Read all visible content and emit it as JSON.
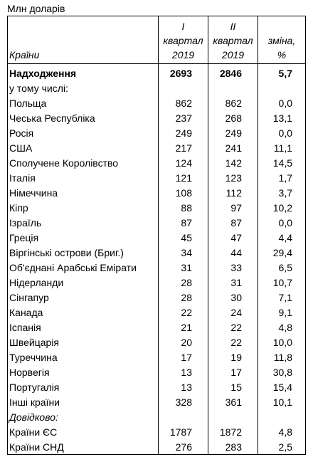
{
  "unit_label": "Млн доларів",
  "headers": {
    "country": "Країни",
    "q1": [
      "I",
      "квартал",
      "2019"
    ],
    "q2": [
      "II",
      "квартал",
      "2019"
    ],
    "change": [
      "зміна,",
      "%"
    ]
  },
  "total": {
    "label": "Надходження",
    "q1": "2693",
    "q2": "2846",
    "change": "5,7"
  },
  "including_label": "у тому числі:",
  "rows": [
    {
      "country": "Польща",
      "q1": "862",
      "q2": "862",
      "change": "0,0"
    },
    {
      "country": "Чеська Республіка",
      "q1": "237",
      "q2": "268",
      "change": "13,1"
    },
    {
      "country": "Росія",
      "q1": "249",
      "q2": "249",
      "change": "0,0"
    },
    {
      "country": "США",
      "q1": "217",
      "q2": "241",
      "change": "11,1"
    },
    {
      "country": "Сполучене Королівство",
      "q1": "124",
      "q2": "142",
      "change": "14,5"
    },
    {
      "country": "Італія",
      "q1": "121",
      "q2": "123",
      "change": "1,7"
    },
    {
      "country": "Німеччина",
      "q1": "108",
      "q2": "112",
      "change": "3,7"
    },
    {
      "country": "Кіпр",
      "q1": "88",
      "q2": "97",
      "change": "10,2"
    },
    {
      "country": "Ізраїль",
      "q1": "87",
      "q2": "87",
      "change": "0,0"
    },
    {
      "country": "Греція",
      "q1": "45",
      "q2": "47",
      "change": "4,4"
    },
    {
      "country": "Віргінські острови (Бриг.)",
      "q1": "34",
      "q2": "44",
      "change": "29,4"
    },
    {
      "country": "Об'єднані Арабські Емірати",
      "q1": "31",
      "q2": "33",
      "change": "6,5"
    },
    {
      "country": "Нідерланди",
      "q1": "28",
      "q2": "31",
      "change": "10,7"
    },
    {
      "country": "Сінгапур",
      "q1": "28",
      "q2": "30",
      "change": "7,1"
    },
    {
      "country": "Канада",
      "q1": "22",
      "q2": "24",
      "change": "9,1"
    },
    {
      "country": "Іспанія",
      "q1": "21",
      "q2": "22",
      "change": "4,8"
    },
    {
      "country": "Швейцарія",
      "q1": "20",
      "q2": "22",
      "change": "10,0"
    },
    {
      "country": "Туреччина",
      "q1": "17",
      "q2": "19",
      "change": "11,8"
    },
    {
      "country": "Норвегія",
      "q1": "13",
      "q2": "17",
      "change": "30,8"
    },
    {
      "country": "Португалія",
      "q1": "13",
      "q2": "15",
      "change": "15,4"
    },
    {
      "country": "Інші країни",
      "q1": "328",
      "q2": "361",
      "change": "10,1"
    }
  ],
  "reference_label": "Довідково:",
  "reference_rows": [
    {
      "country": "Країни ЄС",
      "q1": "1787",
      "q2": "1872",
      "change": "4,8"
    },
    {
      "country": "Країни СНД",
      "q1": "276",
      "q2": "283",
      "change": "2,5"
    }
  ]
}
